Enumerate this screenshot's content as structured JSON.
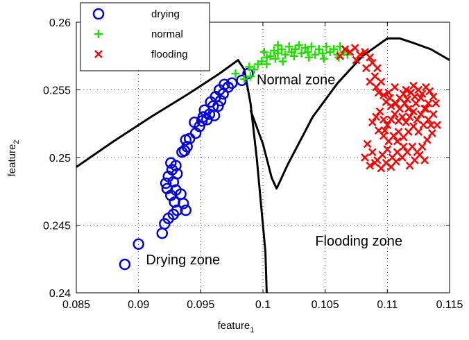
{
  "chart_data": {
    "type": "scatter",
    "xlabel": "feature",
    "xlabel_sub": "1",
    "ylabel": "feature",
    "ylabel_sub": "2",
    "xlim": [
      0.085,
      0.115
    ],
    "ylim": [
      0.24,
      0.26
    ],
    "xticks": [
      0.085,
      0.09,
      0.095,
      0.1,
      0.105,
      0.11,
      0.115
    ],
    "xtick_labels": [
      "0.085",
      "0.09",
      "0.095",
      "0.1",
      "0.105",
      "0.11",
      "0.115"
    ],
    "yticks": [
      0.24,
      0.245,
      0.25,
      0.255,
      0.26
    ],
    "ytick_labels": [
      "0.24",
      "0.245",
      "0.25",
      "0.255",
      "0.26"
    ],
    "grid": true,
    "legend_position": "top-left",
    "series": [
      {
        "name": "drying",
        "marker": "circle",
        "color": "#0000dd",
        "points": [
          [
            0.0889,
            0.2421
          ],
          [
            0.09,
            0.2436
          ],
          [
            0.0919,
            0.2444
          ],
          [
            0.0921,
            0.2451
          ],
          [
            0.0924,
            0.2455
          ],
          [
            0.0928,
            0.2458
          ],
          [
            0.0931,
            0.2461
          ],
          [
            0.0938,
            0.2461
          ],
          [
            0.0929,
            0.2467
          ],
          [
            0.0936,
            0.2466
          ],
          [
            0.0926,
            0.2472
          ],
          [
            0.0934,
            0.2473
          ],
          [
            0.0923,
            0.2477
          ],
          [
            0.093,
            0.2476
          ],
          [
            0.0922,
            0.2481
          ],
          [
            0.0928,
            0.2482
          ],
          [
            0.0924,
            0.2486
          ],
          [
            0.0931,
            0.2488
          ],
          [
            0.0927,
            0.2491
          ],
          [
            0.093,
            0.2494
          ],
          [
            0.0926,
            0.2496
          ],
          [
            0.0935,
            0.2504
          ],
          [
            0.0937,
            0.2505
          ],
          [
            0.0939,
            0.2508
          ],
          [
            0.0938,
            0.2513
          ],
          [
            0.0941,
            0.2514
          ],
          [
            0.0946,
            0.2518
          ],
          [
            0.0949,
            0.2523
          ],
          [
            0.0945,
            0.2526
          ],
          [
            0.0951,
            0.2527
          ],
          [
            0.0955,
            0.2528
          ],
          [
            0.0952,
            0.253
          ],
          [
            0.0957,
            0.2532
          ],
          [
            0.0961,
            0.2531
          ],
          [
            0.0953,
            0.2535
          ],
          [
            0.096,
            0.2538
          ],
          [
            0.0964,
            0.2538
          ],
          [
            0.0958,
            0.2541
          ],
          [
            0.0966,
            0.2542
          ],
          [
            0.0962,
            0.2545
          ],
          [
            0.0968,
            0.2547
          ],
          [
            0.0965,
            0.255
          ],
          [
            0.0972,
            0.2552
          ],
          [
            0.0969,
            0.2554
          ],
          [
            0.0975,
            0.2555
          ],
          [
            0.0983,
            0.2557
          ],
          [
            0.0988,
            0.2562
          ]
        ]
      },
      {
        "name": "normal",
        "marker": "plus",
        "color": "#22dd00",
        "points": [
          [
            0.0978,
            0.2562
          ],
          [
            0.0985,
            0.2558
          ],
          [
            0.099,
            0.256
          ],
          [
            0.0993,
            0.2565
          ],
          [
            0.0989,
            0.2567
          ],
          [
            0.0996,
            0.2569
          ],
          [
            0.0999,
            0.2571
          ],
          [
            0.1003,
            0.2574
          ],
          [
            0.1001,
            0.2578
          ],
          [
            0.1006,
            0.2575
          ],
          [
            0.1009,
            0.2579
          ],
          [
            0.1012,
            0.2577
          ],
          [
            0.1015,
            0.258
          ],
          [
            0.1018,
            0.2576
          ],
          [
            0.1021,
            0.2582
          ],
          [
            0.1023,
            0.2578
          ],
          [
            0.1026,
            0.258
          ],
          [
            0.1029,
            0.2583
          ],
          [
            0.1031,
            0.2577
          ],
          [
            0.1034,
            0.2581
          ],
          [
            0.1036,
            0.2578
          ],
          [
            0.1039,
            0.2582
          ],
          [
            0.1042,
            0.2576
          ],
          [
            0.1045,
            0.258
          ],
          [
            0.1048,
            0.2577
          ],
          [
            0.1051,
            0.2582
          ],
          [
            0.1054,
            0.2578
          ],
          [
            0.1057,
            0.258
          ],
          [
            0.106,
            0.2576
          ],
          [
            0.1062,
            0.2582
          ],
          [
            0.1065,
            0.2578
          ],
          [
            0.1068,
            0.2576
          ],
          [
            0.1003,
            0.2569
          ],
          [
            0.101,
            0.2573
          ],
          [
            0.1016,
            0.2571
          ],
          [
            0.1025,
            0.2575
          ],
          [
            0.1037,
            0.2574
          ],
          [
            0.1049,
            0.2573
          ],
          [
            0.1061,
            0.2574
          ],
          [
            0.1012,
            0.2583
          ]
        ]
      },
      {
        "name": "flooding",
        "marker": "x",
        "color": "#ff0000",
        "points": [
          [
            0.1062,
            0.2575
          ],
          [
            0.1066,
            0.258
          ],
          [
            0.107,
            0.2578
          ],
          [
            0.1074,
            0.2581
          ],
          [
            0.1078,
            0.2576
          ],
          [
            0.1082,
            0.2578
          ],
          [
            0.1086,
            0.2574
          ],
          [
            0.1075,
            0.2572
          ],
          [
            0.1083,
            0.2566
          ],
          [
            0.1088,
            0.257
          ],
          [
            0.1092,
            0.2566
          ],
          [
            0.109,
            0.256
          ],
          [
            0.1086,
            0.2556
          ],
          [
            0.1091,
            0.2552
          ],
          [
            0.1095,
            0.2556
          ],
          [
            0.1093,
            0.2548
          ],
          [
            0.1097,
            0.2546
          ],
          [
            0.1101,
            0.2548
          ],
          [
            0.1099,
            0.2541
          ],
          [
            0.1103,
            0.2538
          ],
          [
            0.1107,
            0.254
          ],
          [
            0.111,
            0.2544
          ],
          [
            0.1113,
            0.2547
          ],
          [
            0.1116,
            0.2543
          ],
          [
            0.1119,
            0.2548
          ],
          [
            0.1122,
            0.2545
          ],
          [
            0.1125,
            0.255
          ],
          [
            0.1128,
            0.2547
          ],
          [
            0.1131,
            0.2552
          ],
          [
            0.1134,
            0.2549
          ],
          [
            0.1137,
            0.2545
          ],
          [
            0.1133,
            0.254
          ],
          [
            0.113,
            0.2536
          ],
          [
            0.1127,
            0.2532
          ],
          [
            0.1124,
            0.2528
          ],
          [
            0.1121,
            0.2534
          ],
          [
            0.1118,
            0.253
          ],
          [
            0.1115,
            0.2526
          ],
          [
            0.1112,
            0.253
          ],
          [
            0.1109,
            0.2527
          ],
          [
            0.1106,
            0.2532
          ],
          [
            0.1103,
            0.2528
          ],
          [
            0.11,
            0.2524
          ],
          [
            0.1097,
            0.2528
          ],
          [
            0.1094,
            0.2534
          ],
          [
            0.1091,
            0.253
          ],
          [
            0.1088,
            0.2526
          ],
          [
            0.1093,
            0.252
          ],
          [
            0.1097,
            0.2516
          ],
          [
            0.1101,
            0.2512
          ],
          [
            0.1105,
            0.2516
          ],
          [
            0.1109,
            0.2519
          ],
          [
            0.1113,
            0.2515
          ],
          [
            0.1117,
            0.2519
          ],
          [
            0.1121,
            0.2523
          ],
          [
            0.1125,
            0.2519
          ],
          [
            0.1129,
            0.2524
          ],
          [
            0.1133,
            0.2528
          ],
          [
            0.1137,
            0.2532
          ],
          [
            0.114,
            0.2524
          ],
          [
            0.1136,
            0.2518
          ],
          [
            0.1132,
            0.2513
          ],
          [
            0.1128,
            0.2508
          ],
          [
            0.1124,
            0.2504
          ],
          [
            0.112,
            0.2508
          ],
          [
            0.1116,
            0.2504
          ],
          [
            0.1112,
            0.25
          ],
          [
            0.1108,
            0.2504
          ],
          [
            0.1104,
            0.25
          ],
          [
            0.11,
            0.2506
          ],
          [
            0.1096,
            0.2502
          ],
          [
            0.1092,
            0.2498
          ],
          [
            0.1088,
            0.2504
          ],
          [
            0.1084,
            0.251
          ],
          [
            0.1082,
            0.25
          ],
          [
            0.1086,
            0.2494
          ],
          [
            0.109,
            0.2496
          ],
          [
            0.1095,
            0.2492
          ],
          [
            0.1099,
            0.2496
          ],
          [
            0.1103,
            0.2493
          ],
          [
            0.1107,
            0.2497
          ],
          [
            0.1118,
            0.2494
          ],
          [
            0.1122,
            0.2498
          ],
          [
            0.1126,
            0.2502
          ],
          [
            0.113,
            0.2498
          ],
          [
            0.111,
            0.2536
          ],
          [
            0.1114,
            0.254
          ],
          [
            0.1102,
            0.2544
          ],
          [
            0.1106,
            0.2552
          ],
          [
            0.1117,
            0.2536
          ],
          [
            0.1123,
            0.254
          ],
          [
            0.1127,
            0.2544
          ],
          [
            0.1121,
            0.2553
          ],
          [
            0.1115,
            0.255
          ],
          [
            0.1108,
            0.2512
          ],
          [
            0.1113,
            0.2508
          ],
          [
            0.1098,
            0.252
          ],
          [
            0.1131,
            0.2536
          ],
          [
            0.1135,
            0.2524
          ],
          [
            0.1139,
            0.254
          ]
        ]
      }
    ],
    "boundaries": [
      {
        "name": "drying-normal-boundary",
        "points": [
          [
            0.085,
            0.2493
          ],
          [
            0.088,
            0.2512
          ],
          [
            0.091,
            0.253
          ],
          [
            0.094,
            0.2547
          ],
          [
            0.0965,
            0.2562
          ],
          [
            0.098,
            0.2572
          ],
          [
            0.0985,
            0.2565
          ],
          [
            0.099,
            0.254
          ],
          [
            0.0995,
            0.25
          ],
          [
            0.0999,
            0.246
          ],
          [
            0.1002,
            0.243
          ],
          [
            0.1003,
            0.24
          ]
        ]
      },
      {
        "name": "normal-flooding-boundary",
        "points": [
          [
            0.099,
            0.2535
          ],
          [
            0.1,
            0.251
          ],
          [
            0.1007,
            0.2485
          ],
          [
            0.1011,
            0.2477
          ],
          [
            0.102,
            0.2495
          ],
          [
            0.104,
            0.253
          ],
          [
            0.106,
            0.2555
          ],
          [
            0.108,
            0.2575
          ],
          [
            0.11,
            0.2588
          ],
          [
            0.111,
            0.2588
          ],
          [
            0.112,
            0.2585
          ],
          [
            0.1135,
            0.258
          ],
          [
            0.115,
            0.2572
          ]
        ]
      }
    ],
    "annotations": [
      {
        "text": "Normal zone",
        "x": 0.0995,
        "y": 0.2554
      },
      {
        "text": "Drying zone",
        "x": 0.0906,
        "y": 0.2421
      },
      {
        "text": "Flooding zone",
        "x": 0.1042,
        "y": 0.2435
      }
    ]
  }
}
